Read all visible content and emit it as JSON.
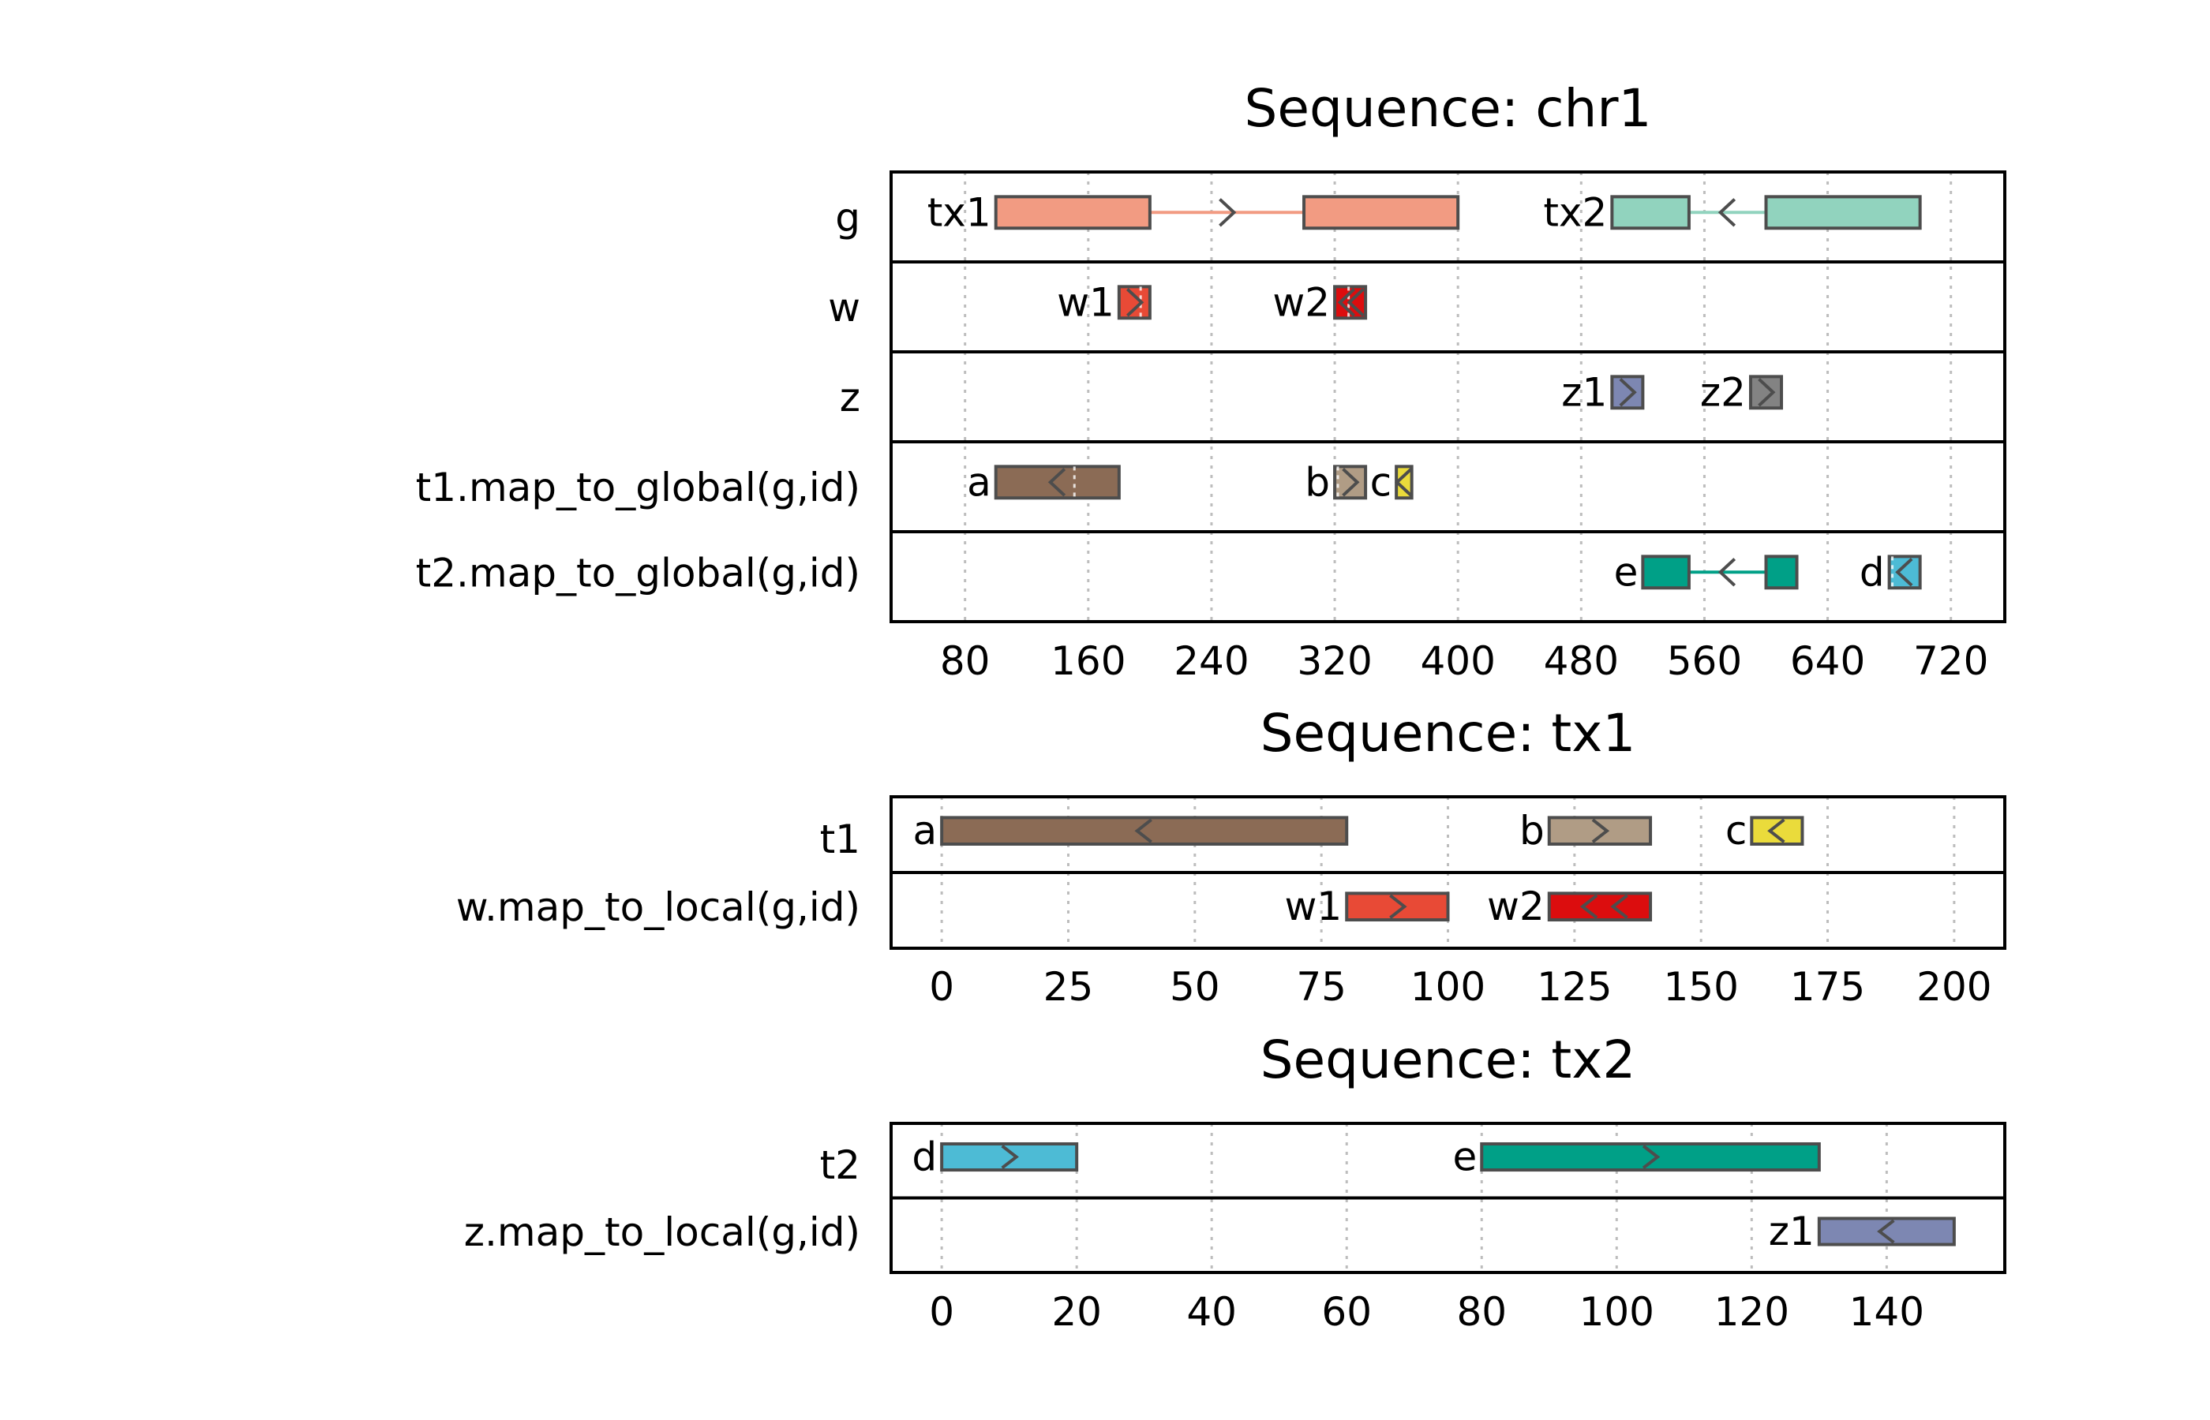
{
  "chart_data": [
    {
      "type": "gene-track",
      "title": "Sequence: chr1",
      "xlim": [
        32,
        755
      ],
      "x_ticks": [
        80,
        160,
        240,
        320,
        400,
        480,
        560,
        640,
        720
      ],
      "tracks": [
        {
          "label": "g",
          "features": [
            {
              "name": "tx1",
              "strand": "+",
              "color": "#f29b82",
              "exons": [
                [
                  100,
                  200
                ],
                [
                  300,
                  400
                ]
              ],
              "arrows": [
                250
              ]
            },
            {
              "name": "tx2",
              "strand": "-",
              "color": "#91d3be",
              "exons": [
                [
                  500,
                  550
                ],
                [
                  600,
                  700
                ]
              ],
              "arrows": [
                575
              ]
            }
          ]
        },
        {
          "label": "w",
          "features": [
            {
              "name": "w1",
              "strand": "+",
              "color": "#e84a36",
              "exons": [
                [
                  180,
                  200
                ]
              ],
              "arrows": [
                190
              ],
              "dashed": [
                194
              ]
            },
            {
              "name": "w2",
              "strand": "-",
              "color": "#dc0d0e",
              "exons": [
                [
                  320,
                  340
                ]
              ],
              "arrows": [
                328,
                334
              ],
              "dashed": [
                329
              ]
            }
          ]
        },
        {
          "label": "z",
          "features": [
            {
              "name": "z1",
              "strand": "+",
              "color": "#7d87b2",
              "exons": [
                [
                  500,
                  520
                ]
              ],
              "arrows": [
                510
              ]
            },
            {
              "name": "z2",
              "strand": "+",
              "color": "#838383",
              "exons": [
                [
                  590,
                  610
                ]
              ],
              "arrows": [
                600
              ]
            }
          ]
        },
        {
          "label": "t1.map_to_global(g,id)",
          "features": [
            {
              "name": "a",
              "strand": "-",
              "color": "#8b6b55",
              "exons": [
                [
                  100,
                  180
                ]
              ],
              "arrows": [
                140
              ],
              "dashed": [
                151
              ]
            },
            {
              "name": "b",
              "strand": "+",
              "color": "#b09c85",
              "exons": [
                [
                  320,
                  340
                ]
              ],
              "arrows": [
                330
              ],
              "dashed": [
                322
              ]
            },
            {
              "name": "c",
              "strand": "-",
              "color": "#eadb3b",
              "exons": [
                [
                  360,
                  370
                ]
              ],
              "arrows": [
                365
              ]
            }
          ]
        },
        {
          "label": "t2.map_to_global(g,id)",
          "features": [
            {
              "name": "e",
              "strand": "-",
              "color": "#00a087",
              "exons": [
                [
                  520,
                  550
                ],
                [
                  600,
                  620
                ]
              ],
              "arrows": [
                575
              ]
            },
            {
              "name": "d",
              "strand": "-",
              "color": "#4dbbd5",
              "exons": [
                [
                  680,
                  700
                ]
              ],
              "arrows": [
                690
              ],
              "dashed": [
                682
              ]
            }
          ]
        }
      ]
    },
    {
      "type": "gene-track",
      "title": "Sequence: tx1",
      "xlim": [
        -10,
        210
      ],
      "x_ticks": [
        0,
        25,
        50,
        75,
        100,
        125,
        150,
        175,
        200
      ],
      "tracks": [
        {
          "label": "t1",
          "features": [
            {
              "name": "a",
              "strand": "-",
              "color": "#8b6b55",
              "exons": [
                [
                  0,
                  80
                ]
              ],
              "arrows": [
                40
              ]
            },
            {
              "name": "b",
              "strand": "+",
              "color": "#b09c85",
              "exons": [
                [
                  120,
                  140
                ]
              ],
              "arrows": [
                130
              ]
            },
            {
              "name": "c",
              "strand": "-",
              "color": "#eadb3b",
              "exons": [
                [
                  160,
                  170
                ]
              ],
              "arrows": [
                165
              ]
            }
          ]
        },
        {
          "label": "w.map_to_local(g,id)",
          "features": [
            {
              "name": "w1",
              "strand": "+",
              "color": "#e84a36",
              "exons": [
                [
                  80,
                  100
                ]
              ],
              "arrows": [
                90
              ]
            },
            {
              "name": "w2",
              "strand": "-",
              "color": "#dc0d0e",
              "exons": [
                [
                  120,
                  140
                ]
              ],
              "arrows": [
                128,
                134
              ]
            }
          ]
        }
      ]
    },
    {
      "type": "gene-track",
      "title": "Sequence: tx2",
      "xlim": [
        -7.5,
        157.5
      ],
      "x_ticks": [
        0,
        20,
        40,
        60,
        80,
        100,
        120,
        140
      ],
      "tracks": [
        {
          "label": "t2",
          "features": [
            {
              "name": "d",
              "strand": "+",
              "color": "#4dbbd5",
              "exons": [
                [
                  0,
                  20
                ]
              ],
              "arrows": [
                10
              ]
            },
            {
              "name": "e",
              "strand": "+",
              "color": "#00a087",
              "exons": [
                [
                  80,
                  130
                ]
              ],
              "arrows": [
                105
              ]
            }
          ]
        },
        {
          "label": "z.map_to_local(g,id)",
          "features": [
            {
              "name": "z1",
              "strand": "-",
              "color": "#7d87b2",
              "exons": [
                [
                  130,
                  150
                ]
              ],
              "arrows": [
                140
              ]
            }
          ]
        }
      ]
    }
  ]
}
